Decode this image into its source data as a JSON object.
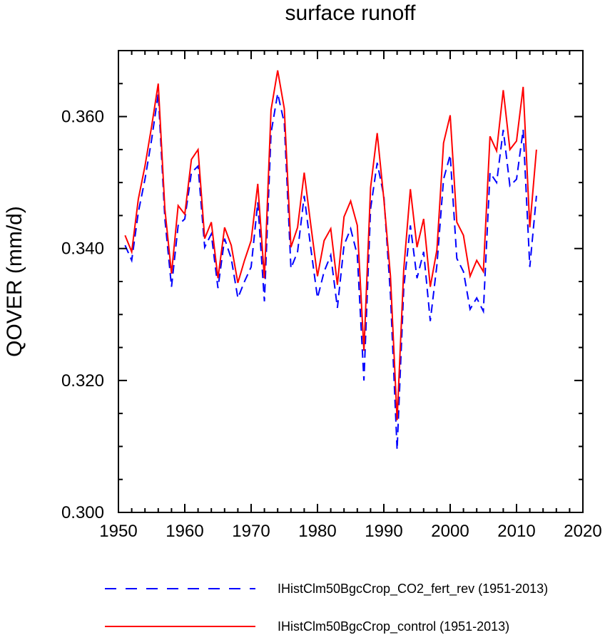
{
  "chart_data": {
    "type": "line",
    "title": "surface runoff",
    "xlabel": "",
    "ylabel": "QOVER  (mm/d)",
    "xlim": [
      1950,
      2020
    ],
    "ylim": [
      0.3,
      0.37
    ],
    "x_ticks": [
      1950,
      1960,
      1970,
      1980,
      1990,
      2000,
      2010,
      2020
    ],
    "x_tick_labels": [
      "1950",
      "1960",
      "1970",
      "1980",
      "1990",
      "2000",
      "2010",
      "2020"
    ],
    "y_ticks": [
      0.3,
      0.32,
      0.34,
      0.36
    ],
    "y_tick_labels": [
      "0.300",
      "0.320",
      "0.340",
      "0.360"
    ],
    "grid": false,
    "legend_position": "bottom",
    "x": [
      1951,
      1952,
      1953,
      1954,
      1955,
      1956,
      1957,
      1958,
      1959,
      1960,
      1961,
      1962,
      1963,
      1964,
      1965,
      1966,
      1967,
      1968,
      1969,
      1970,
      1971,
      1972,
      1973,
      1974,
      1975,
      1976,
      1977,
      1978,
      1979,
      1980,
      1981,
      1982,
      1983,
      1984,
      1985,
      1986,
      1987,
      1988,
      1989,
      1990,
      1991,
      1992,
      1993,
      1994,
      1995,
      1996,
      1997,
      1998,
      1999,
      2000,
      2001,
      2002,
      2003,
      2004,
      2005,
      2006,
      2007,
      2008,
      2009,
      2010,
      2011,
      2012,
      2013
    ],
    "series": [
      {
        "name": "IHistClm50BgcCrop_CO2_fert_rev (1951-2013)",
        "color": "#0000ff",
        "style": "dashed",
        "values": [
          0.3405,
          0.3382,
          0.3455,
          0.3505,
          0.3565,
          0.3635,
          0.3445,
          0.3342,
          0.3435,
          0.3445,
          0.3515,
          0.3525,
          0.3402,
          0.3422,
          0.334,
          0.3415,
          0.3385,
          0.3325,
          0.335,
          0.3372,
          0.347,
          0.332,
          0.3575,
          0.3635,
          0.359,
          0.337,
          0.3395,
          0.348,
          0.34,
          0.3325,
          0.3365,
          0.339,
          0.331,
          0.3405,
          0.343,
          0.339,
          0.32,
          0.346,
          0.353,
          0.348,
          0.333,
          0.3095,
          0.334,
          0.3435,
          0.3355,
          0.3395,
          0.329,
          0.3375,
          0.3505,
          0.3542,
          0.3385,
          0.3365,
          0.3308,
          0.3325,
          0.3305,
          0.3515,
          0.35,
          0.358,
          0.3495,
          0.3505,
          0.358,
          0.3372,
          0.348
        ]
      },
      {
        "name": "IHistClm50BgcCrop_control (1951-2013)",
        "color": "#ff0000",
        "style": "solid",
        "values": [
          0.342,
          0.3395,
          0.3475,
          0.3525,
          0.3585,
          0.365,
          0.346,
          0.3362,
          0.3465,
          0.3452,
          0.3535,
          0.355,
          0.3415,
          0.344,
          0.3355,
          0.3432,
          0.3405,
          0.3348,
          0.3382,
          0.3412,
          0.3498,
          0.3355,
          0.361,
          0.367,
          0.3612,
          0.3402,
          0.3432,
          0.3515,
          0.3435,
          0.3358,
          0.3412,
          0.343,
          0.3345,
          0.3448,
          0.3472,
          0.3435,
          0.3245,
          0.3492,
          0.3575,
          0.3475,
          0.3358,
          0.314,
          0.3368,
          0.349,
          0.3402,
          0.3445,
          0.3342,
          0.3398,
          0.356,
          0.3602,
          0.344,
          0.342,
          0.3358,
          0.3382,
          0.3365,
          0.357,
          0.3548,
          0.364,
          0.355,
          0.3563,
          0.3645,
          0.3432,
          0.355
        ]
      }
    ]
  }
}
